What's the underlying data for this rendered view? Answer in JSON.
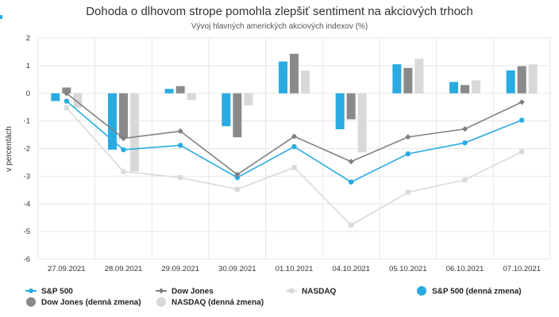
{
  "chart_data": {
    "type": "bar",
    "title": "Dohoda o dlhovom strope pomohla zlepšiť sentiment na akciových trhoch",
    "subtitle": "Vývoj hlavných amerických akciových indexov (%)",
    "ylabel": "v percentách",
    "xlabel": "",
    "ylim": [
      -6,
      2
    ],
    "yticks": [
      -6,
      -5,
      -4,
      -3,
      -2,
      -1,
      0,
      1,
      2
    ],
    "grid": true,
    "legend_position": "bottom",
    "categories": [
      "27.09.2021",
      "28.09.2021",
      "29.09.2021",
      "30.09.2021",
      "01.10.2021",
      "04.10.2021",
      "05.10.2021",
      "06.10.2021",
      "07.10.2021"
    ],
    "bar_series": [
      {
        "name": "S&P 500 (denná zmena)",
        "color": "#29abe2",
        "values": [
          -0.28,
          -2.04,
          0.16,
          -1.19,
          1.15,
          -1.3,
          1.05,
          0.41,
          0.83
        ]
      },
      {
        "name": "Dow Jones (denná zmena)",
        "color": "#8a8a8a",
        "values": [
          0.21,
          -1.63,
          0.26,
          -1.59,
          1.43,
          -0.94,
          0.92,
          0.3,
          0.98
        ]
      },
      {
        "name": "NASDAQ (denná zmena)",
        "color": "#d9d9d9",
        "values": [
          -0.52,
          -2.83,
          -0.24,
          -0.44,
          0.82,
          -2.14,
          1.25,
          0.47,
          1.05
        ]
      }
    ],
    "line_series": [
      {
        "name": "S&P 500",
        "color": "#29abe2",
        "marker": "circle",
        "values": [
          -0.28,
          -2.04,
          -1.88,
          -3.05,
          -1.93,
          -3.21,
          -2.19,
          -1.79,
          -0.97
        ]
      },
      {
        "name": "Dow Jones",
        "color": "#808080",
        "marker": "diamond",
        "values": [
          0.0,
          -1.63,
          -1.37,
          -2.94,
          -1.56,
          -2.47,
          -1.58,
          -1.29,
          -0.32
        ]
      },
      {
        "name": "NASDAQ",
        "color": "#d9d9d9",
        "marker": "square",
        "values": [
          -0.52,
          -2.83,
          -3.05,
          -3.47,
          -2.68,
          -4.77,
          -3.58,
          -3.13,
          -2.11
        ]
      }
    ],
    "legend": [
      {
        "label": "S&P 500",
        "color": "#29abe2",
        "symbol": "line-circle"
      },
      {
        "label": "Dow Jones",
        "color": "#808080",
        "symbol": "line-diamond"
      },
      {
        "label": "NASDAQ",
        "color": "#d9d9d9",
        "symbol": "line-square"
      },
      {
        "label": "S&P 500 (denná zmena)",
        "color": "#29abe2",
        "symbol": "big-circle"
      },
      {
        "label": "Dow Jones (denná zmena)",
        "color": "#8a8a8a",
        "symbol": "big-circle"
      },
      {
        "label": "NASDAQ (denná zmena)",
        "color": "#d9d9d9",
        "symbol": "big-circle"
      }
    ]
  }
}
